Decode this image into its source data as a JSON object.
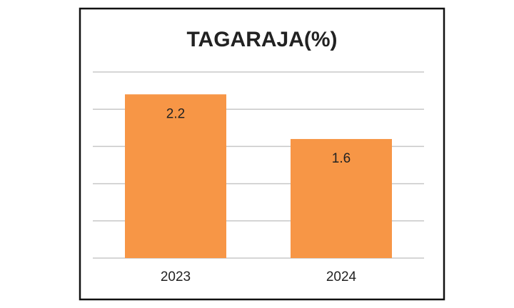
{
  "chart_data": {
    "type": "bar",
    "title": "TAGARAJA(%)",
    "categories": [
      "2023",
      "2024"
    ],
    "values": [
      2.2,
      1.6
    ],
    "color": "#f79646",
    "ylim": [
      0,
      2.5
    ],
    "yticks": [
      0,
      0.5,
      1,
      1.5,
      2,
      2.5
    ],
    "grid": true
  }
}
